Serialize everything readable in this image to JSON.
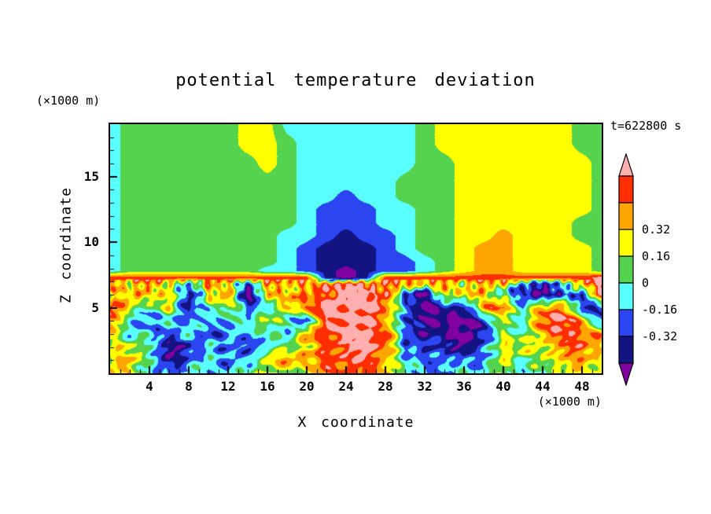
{
  "title": "potential temperature deviation",
  "time_label": "t=622800 s",
  "axes": {
    "x_label": "X coordinate",
    "x_unit": "(×1000 m)",
    "z_label": "Z coordinate",
    "z_unit": "(×1000 m)",
    "x_ticks": [
      4,
      8,
      12,
      16,
      20,
      24,
      28,
      32,
      36,
      40,
      44,
      48
    ],
    "z_ticks": [
      5,
      10,
      15
    ],
    "x_range": [
      0,
      50
    ],
    "z_range": [
      0,
      19
    ]
  },
  "colorbar": {
    "labels": [
      "0.32",
      "0.16",
      "0",
      "-0.16",
      "-0.32"
    ],
    "label_values": [
      0.32,
      0.16,
      0,
      -0.16,
      -0.32
    ]
  },
  "chart_data": {
    "type": "heatmap",
    "title": "potential temperature deviation",
    "xlabel": "X coordinate (×1000 m)",
    "ylabel": "Z coordinate (×1000 m)",
    "time": "t=622800 s",
    "x_range": [
      0,
      50
    ],
    "z_range": [
      0,
      19
    ],
    "legend_position": "right",
    "levels": [
      -0.48,
      -0.32,
      -0.16,
      0,
      0.16,
      0.32,
      0.48,
      0.64
    ],
    "palette": [
      "#8000A0",
      "#131382",
      "#2B46F0",
      "#59FFFF",
      "#55D34E",
      "#FFFF00",
      "#FFA500",
      "#FE2E00",
      "#FFAFAF"
    ],
    "palette_names": [
      "purple",
      "navy",
      "blue",
      "cyan",
      "green",
      "yellow",
      "orange",
      "red",
      "pink"
    ],
    "colorbar_tick_labels": [
      "0.32",
      "0.16",
      "0",
      "-0.16",
      "-0.32"
    ],
    "grid": {
      "x": [
        0,
        2,
        4,
        6,
        8,
        10,
        12,
        14,
        16,
        18,
        20,
        22,
        24,
        26,
        28,
        30,
        32,
        34,
        36,
        38,
        40,
        42,
        44,
        46,
        48,
        50
      ],
      "z": [
        0,
        1,
        2,
        3,
        4,
        5,
        6,
        6.8,
        7.3,
        7.8,
        8.5,
        9.5,
        10.5,
        11.5,
        12.5,
        13.5,
        14.5,
        16,
        17.5,
        19
      ],
      "values": [
        [
          0.24,
          0.24,
          -0.08,
          -0.24,
          -0.08,
          -0.08,
          -0.08,
          -0.08,
          0.24,
          0.08,
          0.24,
          0.4,
          0.56,
          0.56,
          0.4,
          -0.08,
          -0.08,
          -0.24,
          -0.08,
          -0.08,
          0.24,
          -0.08,
          -0.08,
          0.24,
          0.24,
          0.24
        ],
        [
          0.24,
          0.4,
          -0.08,
          -0.4,
          -0.24,
          -0.08,
          -0.24,
          -0.08,
          0.24,
          0.4,
          0.4,
          0.56,
          0.56,
          0.56,
          0.4,
          -0.08,
          -0.24,
          -0.24,
          -0.08,
          -0.24,
          0.24,
          -0.08,
          0.24,
          0.24,
          0.4,
          0.24
        ],
        [
          0.24,
          0.24,
          -0.08,
          -0.4,
          -0.4,
          -0.08,
          -0.24,
          -0.24,
          -0.08,
          0.08,
          0.24,
          0.56,
          0.56,
          0.72,
          0.56,
          -0.24,
          -0.24,
          -0.4,
          -0.4,
          -0.24,
          0.24,
          0.24,
          0.24,
          0.4,
          0.56,
          0.24
        ],
        [
          0.24,
          -0.08,
          -0.08,
          -0.24,
          -0.08,
          -0.24,
          -0.24,
          -0.08,
          -0.08,
          -0.08,
          0.4,
          0.56,
          0.72,
          0.72,
          0.56,
          -0.24,
          -0.4,
          -0.4,
          -0.56,
          -0.4,
          0.24,
          -0.08,
          0.4,
          0.56,
          0.56,
          0.4
        ],
        [
          0.4,
          -0.08,
          -0.24,
          -0.08,
          -0.24,
          -0.08,
          -0.08,
          -0.08,
          0.24,
          -0.08,
          -0.24,
          0.56,
          0.72,
          0.72,
          0.4,
          -0.4,
          -0.4,
          -0.56,
          -0.56,
          -0.4,
          0.24,
          -0.08,
          0.56,
          0.72,
          0.4,
          -0.24
        ],
        [
          0.56,
          0.24,
          -0.08,
          0.24,
          -0.4,
          -0.08,
          0.24,
          -0.24,
          -0.08,
          0.24,
          0.56,
          0.72,
          0.72,
          0.72,
          0.56,
          -0.24,
          -0.56,
          -0.4,
          -0.4,
          0.4,
          0.56,
          -0.08,
          0.4,
          0.56,
          -0.4,
          -0.24
        ],
        [
          0.24,
          0.4,
          0.24,
          0.4,
          -0.4,
          0.24,
          0.4,
          -0.56,
          0.24,
          0.4,
          0.4,
          0.56,
          0.72,
          0.72,
          0.56,
          -0.24,
          -0.56,
          0.24,
          0.4,
          0.24,
          -0.08,
          -0.4,
          -0.4,
          -0.4,
          -0.24,
          0.56
        ],
        [
          0.4,
          0.24,
          0.4,
          0.24,
          -0.24,
          0.4,
          0.24,
          -0.24,
          0.4,
          0.24,
          0.4,
          0.56,
          0.72,
          0.56,
          0.56,
          0.4,
          0.24,
          0.4,
          0.24,
          0.4,
          0.24,
          -0.24,
          -0.4,
          -0.24,
          0.4,
          0.72
        ],
        [
          0.56,
          0.56,
          0.56,
          0.56,
          0.56,
          0.56,
          0.56,
          0.56,
          0.56,
          0.56,
          0.56,
          -0.4,
          -0.56,
          -0.4,
          0.56,
          0.56,
          0.56,
          0.56,
          0.56,
          0.56,
          0.56,
          0.56,
          0.56,
          0.56,
          0.56,
          0.72
        ],
        [
          -0.08,
          0.08,
          0.08,
          0.08,
          0.08,
          0.08,
          0.08,
          0.08,
          -0.08,
          -0.08,
          -0.24,
          -0.4,
          -0.56,
          -0.4,
          -0.24,
          -0.24,
          -0.08,
          0.08,
          0.24,
          0.4,
          0.4,
          0.24,
          0.24,
          0.24,
          0.24,
          0.08
        ],
        [
          -0.08,
          0.08,
          0.08,
          0.08,
          0.08,
          0.08,
          0.08,
          0.08,
          0.08,
          -0.08,
          -0.24,
          -0.4,
          -0.4,
          -0.4,
          -0.24,
          -0.24,
          -0.08,
          0.08,
          0.24,
          0.4,
          0.4,
          0.24,
          0.24,
          0.24,
          0.24,
          0.08
        ],
        [
          -0.08,
          0.08,
          0.08,
          0.08,
          0.08,
          0.08,
          0.08,
          0.08,
          0.08,
          -0.08,
          -0.24,
          -0.4,
          -0.4,
          -0.4,
          -0.24,
          -0.08,
          0.08,
          0.08,
          0.24,
          0.4,
          0.4,
          0.24,
          0.24,
          0.24,
          0.24,
          0.08
        ],
        [
          -0.08,
          0.08,
          0.08,
          0.08,
          0.08,
          0.08,
          0.08,
          0.08,
          0.08,
          -0.08,
          -0.08,
          -0.24,
          -0.4,
          -0.24,
          -0.24,
          -0.08,
          0.08,
          0.08,
          0.24,
          0.24,
          0.4,
          0.24,
          0.24,
          0.24,
          0.08,
          0.08
        ],
        [
          -0.08,
          0.08,
          0.08,
          0.08,
          0.08,
          0.08,
          0.08,
          0.08,
          0.08,
          0.08,
          -0.08,
          -0.24,
          -0.24,
          -0.24,
          -0.08,
          -0.08,
          0.08,
          0.08,
          0.24,
          0.24,
          0.24,
          0.24,
          0.24,
          0.24,
          0.08,
          0.08
        ],
        [
          -0.08,
          0.08,
          0.08,
          0.08,
          0.08,
          0.08,
          0.08,
          0.08,
          0.08,
          0.08,
          -0.08,
          -0.24,
          -0.24,
          -0.24,
          -0.08,
          -0.08,
          0.08,
          0.08,
          0.24,
          0.24,
          0.24,
          0.24,
          0.24,
          0.24,
          0.24,
          0.08
        ],
        [
          -0.08,
          0.08,
          0.08,
          0.08,
          0.08,
          0.08,
          0.08,
          0.08,
          0.08,
          0.08,
          -0.08,
          -0.08,
          -0.24,
          -0.08,
          -0.08,
          0.08,
          0.08,
          0.08,
          0.24,
          0.24,
          0.24,
          0.24,
          0.24,
          0.24,
          0.24,
          0.08
        ],
        [
          -0.08,
          0.08,
          0.08,
          0.08,
          0.08,
          0.08,
          0.08,
          0.08,
          0.08,
          0.08,
          -0.08,
          -0.08,
          -0.08,
          -0.08,
          -0.08,
          0.08,
          0.08,
          0.08,
          0.24,
          0.24,
          0.24,
          0.24,
          0.24,
          0.24,
          0.24,
          0.08
        ],
        [
          -0.08,
          0.08,
          0.08,
          0.08,
          0.08,
          0.08,
          0.08,
          0.08,
          0.24,
          0.08,
          -0.08,
          -0.08,
          -0.08,
          -0.08,
          -0.08,
          -0.08,
          0.08,
          0.08,
          0.24,
          0.24,
          0.24,
          0.24,
          0.24,
          0.24,
          0.24,
          0.08
        ],
        [
          -0.08,
          0.08,
          0.08,
          0.08,
          0.08,
          0.08,
          0.08,
          0.24,
          0.24,
          0.08,
          -0.08,
          -0.08,
          -0.08,
          -0.08,
          -0.08,
          -0.08,
          0.08,
          0.24,
          0.24,
          0.24,
          0.24,
          0.24,
          0.24,
          0.24,
          0.08,
          0.08
        ],
        [
          -0.08,
          0.08,
          0.08,
          0.08,
          0.08,
          0.08,
          0.08,
          0.24,
          0.24,
          -0.08,
          -0.08,
          -0.08,
          -0.08,
          -0.08,
          -0.08,
          -0.08,
          0.08,
          0.24,
          0.24,
          0.24,
          0.24,
          0.24,
          0.24,
          0.24,
          0.08,
          0.08
        ]
      ]
    },
    "turbulence": {
      "z_top": 7.15,
      "amplitude": 0.15,
      "stripe_amplitude": 0.18
    }
  }
}
